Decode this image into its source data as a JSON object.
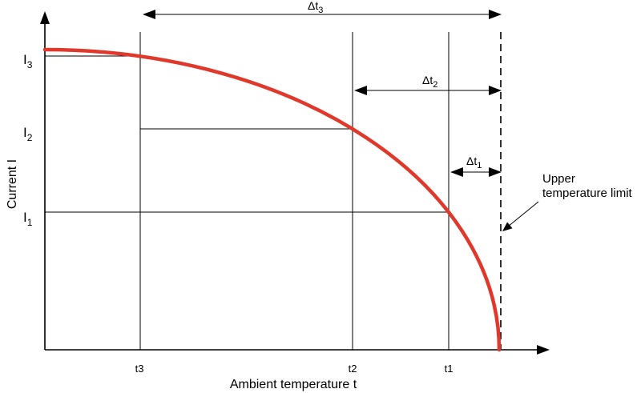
{
  "diagram": {
    "y_axis": {
      "label": "Current I"
    },
    "x_axis": {
      "label": "Ambient temperature t"
    },
    "temperature_marks": [
      {
        "label": "t3"
      },
      {
        "label": "t2"
      },
      {
        "label": "t1"
      }
    ],
    "current_levels": [
      {
        "symbol": "I",
        "index": "3"
      },
      {
        "symbol": "I",
        "index": "2"
      },
      {
        "symbol": "I",
        "index": "1"
      }
    ],
    "temperature_margins": [
      {
        "symbol": "Δt",
        "index": "3"
      },
      {
        "symbol": "Δt",
        "index": "2"
      },
      {
        "symbol": "Δt",
        "index": "1"
      }
    ],
    "limit_annotation": {
      "lines": [
        "Upper",
        "temperature limit"
      ],
      "line_style": "dashed"
    }
  },
  "colors": {
    "curve": "#e0392b",
    "ink": "#000000"
  }
}
